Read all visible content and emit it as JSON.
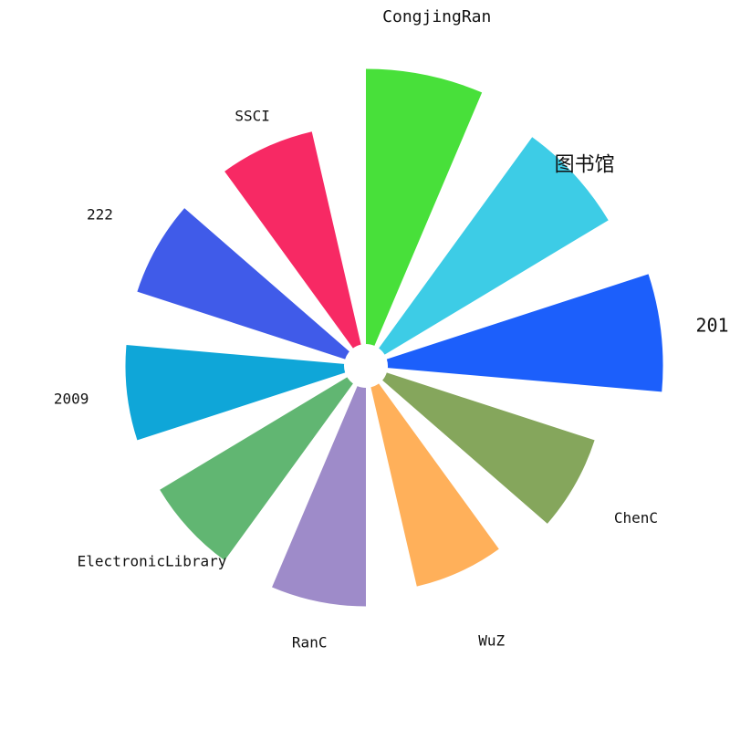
{
  "chart_data": {
    "type": "bar",
    "subtype": "polar",
    "categories": [
      "CongjingRan",
      "图书馆",
      "201",
      "ChenC",
      "WuZ",
      "RanC",
      "ElectronicLibrary",
      "2009",
      "222",
      "SSCI"
    ],
    "values": [
      21,
      20,
      21,
      17,
      16,
      17,
      17,
      17,
      17,
      17
    ],
    "colors": [
      "#48e03a",
      "#3dcce6",
      "#1c5ffb",
      "#85a65c",
      "#ffb05a",
      "#9e8bc9",
      "#61b672",
      "#0fa6d8",
      "#405be9",
      "#f72964"
    ],
    "grid": false,
    "legend": "none"
  }
}
